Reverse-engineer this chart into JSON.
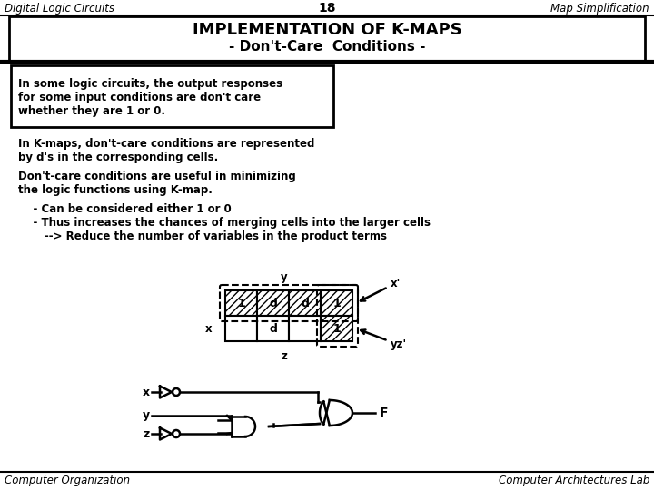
{
  "title_left": "Digital Logic Circuits",
  "title_center": "18",
  "title_right": "Map Simplification",
  "main_title": "IMPLEMENTATION OF K-MAPS",
  "sub_title": "- Don't-Care  Conditions -",
  "box_text_lines": [
    "In some logic circuits, the output responses",
    "for some input conditions are don't care",
    "whether they are 1 or 0."
  ],
  "para1_lines": [
    "In K-maps, don't-care conditions are represented",
    "by d's in the corresponding cells."
  ],
  "para2_lines": [
    "Don't-care conditions are useful in minimizing",
    "the logic functions using K-map."
  ],
  "bullet1": "    - Can be considered either 1 or 0",
  "bullet2": "    - Thus increases the chances of merging cells into the larger cells",
  "bullet3": "       --> Reduce the number of variables in the product terms",
  "footer_left": "Computer Organization",
  "footer_right": "Computer Architectures Lab",
  "bg_color": "#ffffff",
  "text_color": "#000000",
  "kmap_top_labels": [
    "1",
    "d",
    "d",
    "1"
  ],
  "kmap_bot_labels": [
    "",
    "d",
    "",
    "1"
  ],
  "kmap_x_label": "x",
  "kmap_y_label": "y",
  "kmap_z_label": "z",
  "kmap_xprime_label": "x'",
  "kmap_yzprime_label": "yz'"
}
